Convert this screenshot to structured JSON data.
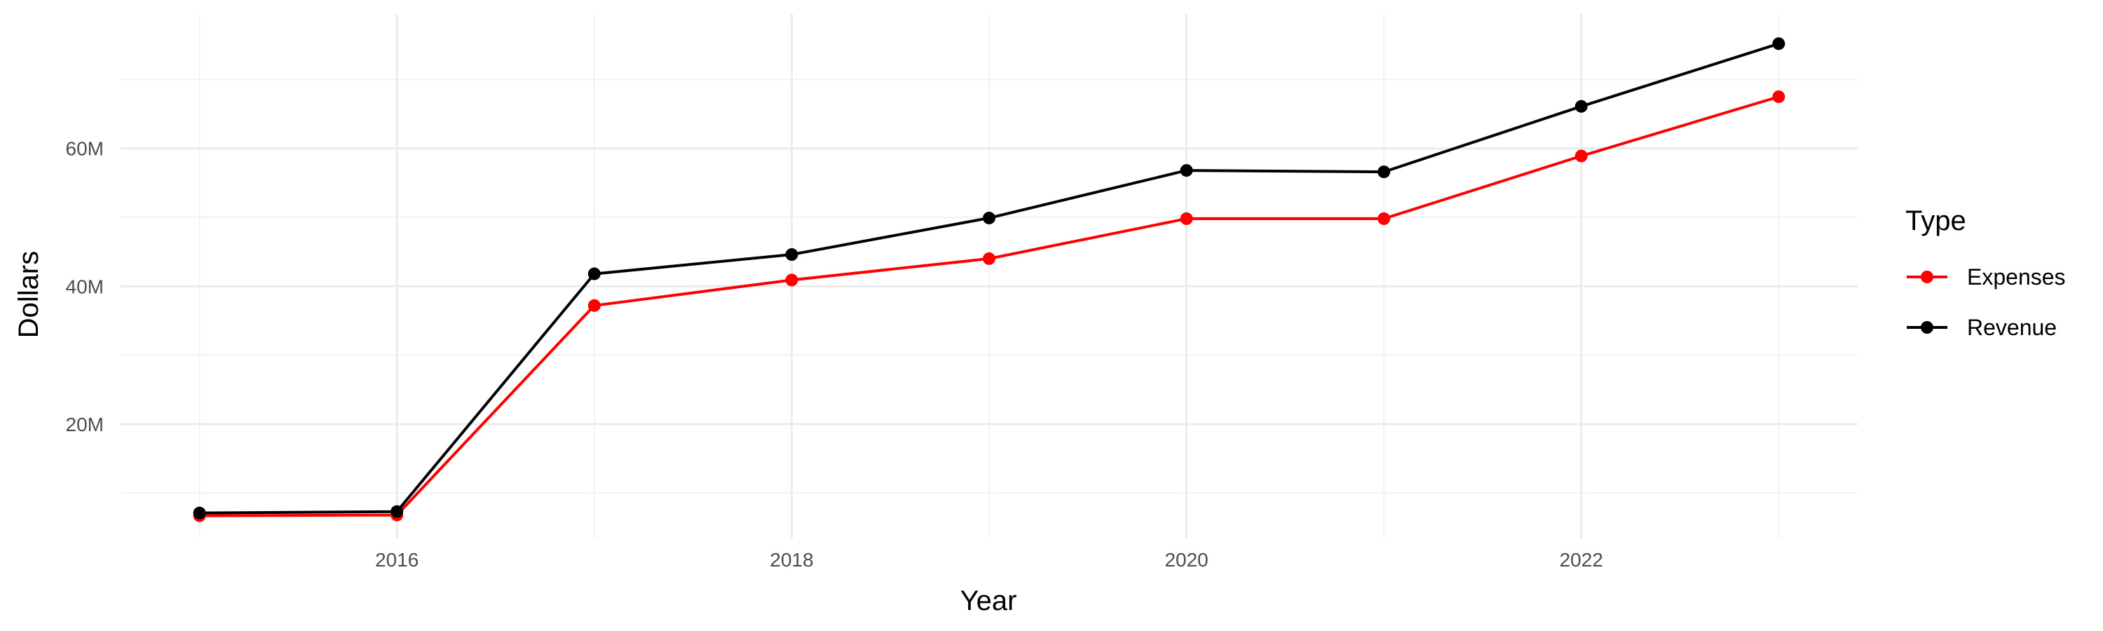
{
  "chart_data": {
    "type": "line",
    "title": "",
    "xlabel": "Year",
    "ylabel": "Dollars",
    "x": [
      2015,
      2016,
      2017,
      2018,
      2019,
      2020,
      2021,
      2022,
      2023
    ],
    "xlim": [
      2014.6,
      2023.4
    ],
    "ylim": [
      3400000,
      79500000
    ],
    "x_ticks": [
      2016,
      2018,
      2020,
      2022
    ],
    "x_tick_labels": [
      "2016",
      "2018",
      "2020",
      "2022"
    ],
    "y_ticks": [
      20000000,
      40000000,
      60000000
    ],
    "y_tick_labels": [
      "20M",
      "40M",
      "60M"
    ],
    "grid": true,
    "legend": {
      "title": "Type",
      "position": "right"
    },
    "series": [
      {
        "name": "Expenses",
        "color": "#ff0000",
        "values": [
          6700000,
          6800000,
          37200000,
          40900000,
          44000000,
          49800000,
          49800000,
          58900000,
          67500000
        ]
      },
      {
        "name": "Revenue",
        "color": "#000000",
        "values": [
          7100000,
          7300000,
          41800000,
          44600000,
          49900000,
          56800000,
          56600000,
          66100000,
          75200000
        ]
      }
    ]
  }
}
